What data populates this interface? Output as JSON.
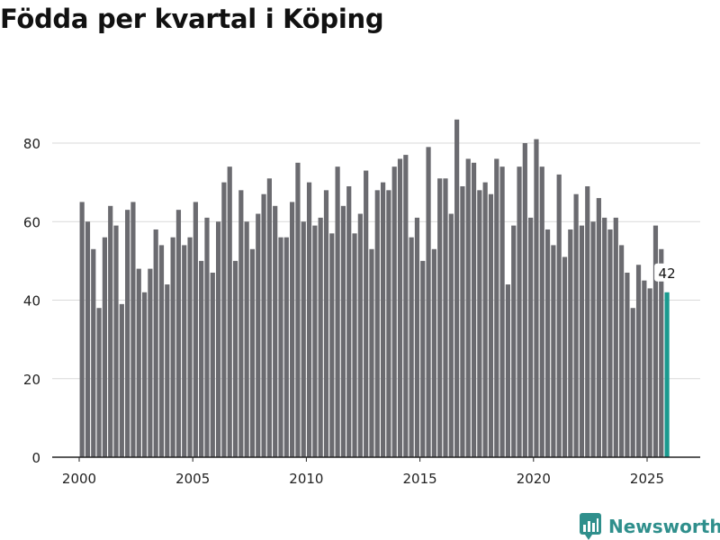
{
  "title": "Födda per kvartal i Köping",
  "brand": {
    "name": "Newsworthy",
    "icon": "newsworthy-logo-icon",
    "color": "#2f8f8c"
  },
  "chart_data": {
    "type": "bar",
    "title": "Födda per kvartal i Köping",
    "xlabel": "",
    "ylabel": "",
    "ylim": [
      0,
      90
    ],
    "yticks": [
      0,
      20,
      40,
      60,
      80
    ],
    "xticks": [
      "2000",
      "2005",
      "2010",
      "2015",
      "2020",
      "2025"
    ],
    "grid": true,
    "bar_color": "#6b6b70",
    "highlight_color": "#1a9a8f",
    "highlight_label": "42",
    "series": [
      {
        "start_year": 2000,
        "values": [
          65,
          60,
          53,
          38,
          56,
          64,
          59,
          39,
          63,
          65,
          48,
          42,
          48,
          58,
          54,
          44,
          56,
          63,
          54,
          56,
          65,
          50,
          61,
          47,
          60,
          70,
          74,
          50,
          68,
          60,
          53,
          62,
          67,
          71,
          64,
          56,
          56,
          65,
          75,
          60,
          70,
          59,
          61,
          68,
          57,
          74,
          64,
          69,
          57,
          62,
          73,
          53,
          68,
          70,
          68,
          74,
          76,
          77,
          56,
          61,
          50,
          79,
          53,
          71,
          71,
          62,
          86,
          69,
          76,
          75,
          68,
          70,
          67,
          76,
          74,
          44,
          59,
          74,
          80,
          61,
          81,
          74,
          58,
          54,
          72,
          51,
          58,
          67,
          59,
          69,
          60,
          66,
          61,
          58,
          61,
          54,
          47,
          38,
          49,
          45,
          43,
          59,
          53,
          42
        ]
      }
    ]
  }
}
